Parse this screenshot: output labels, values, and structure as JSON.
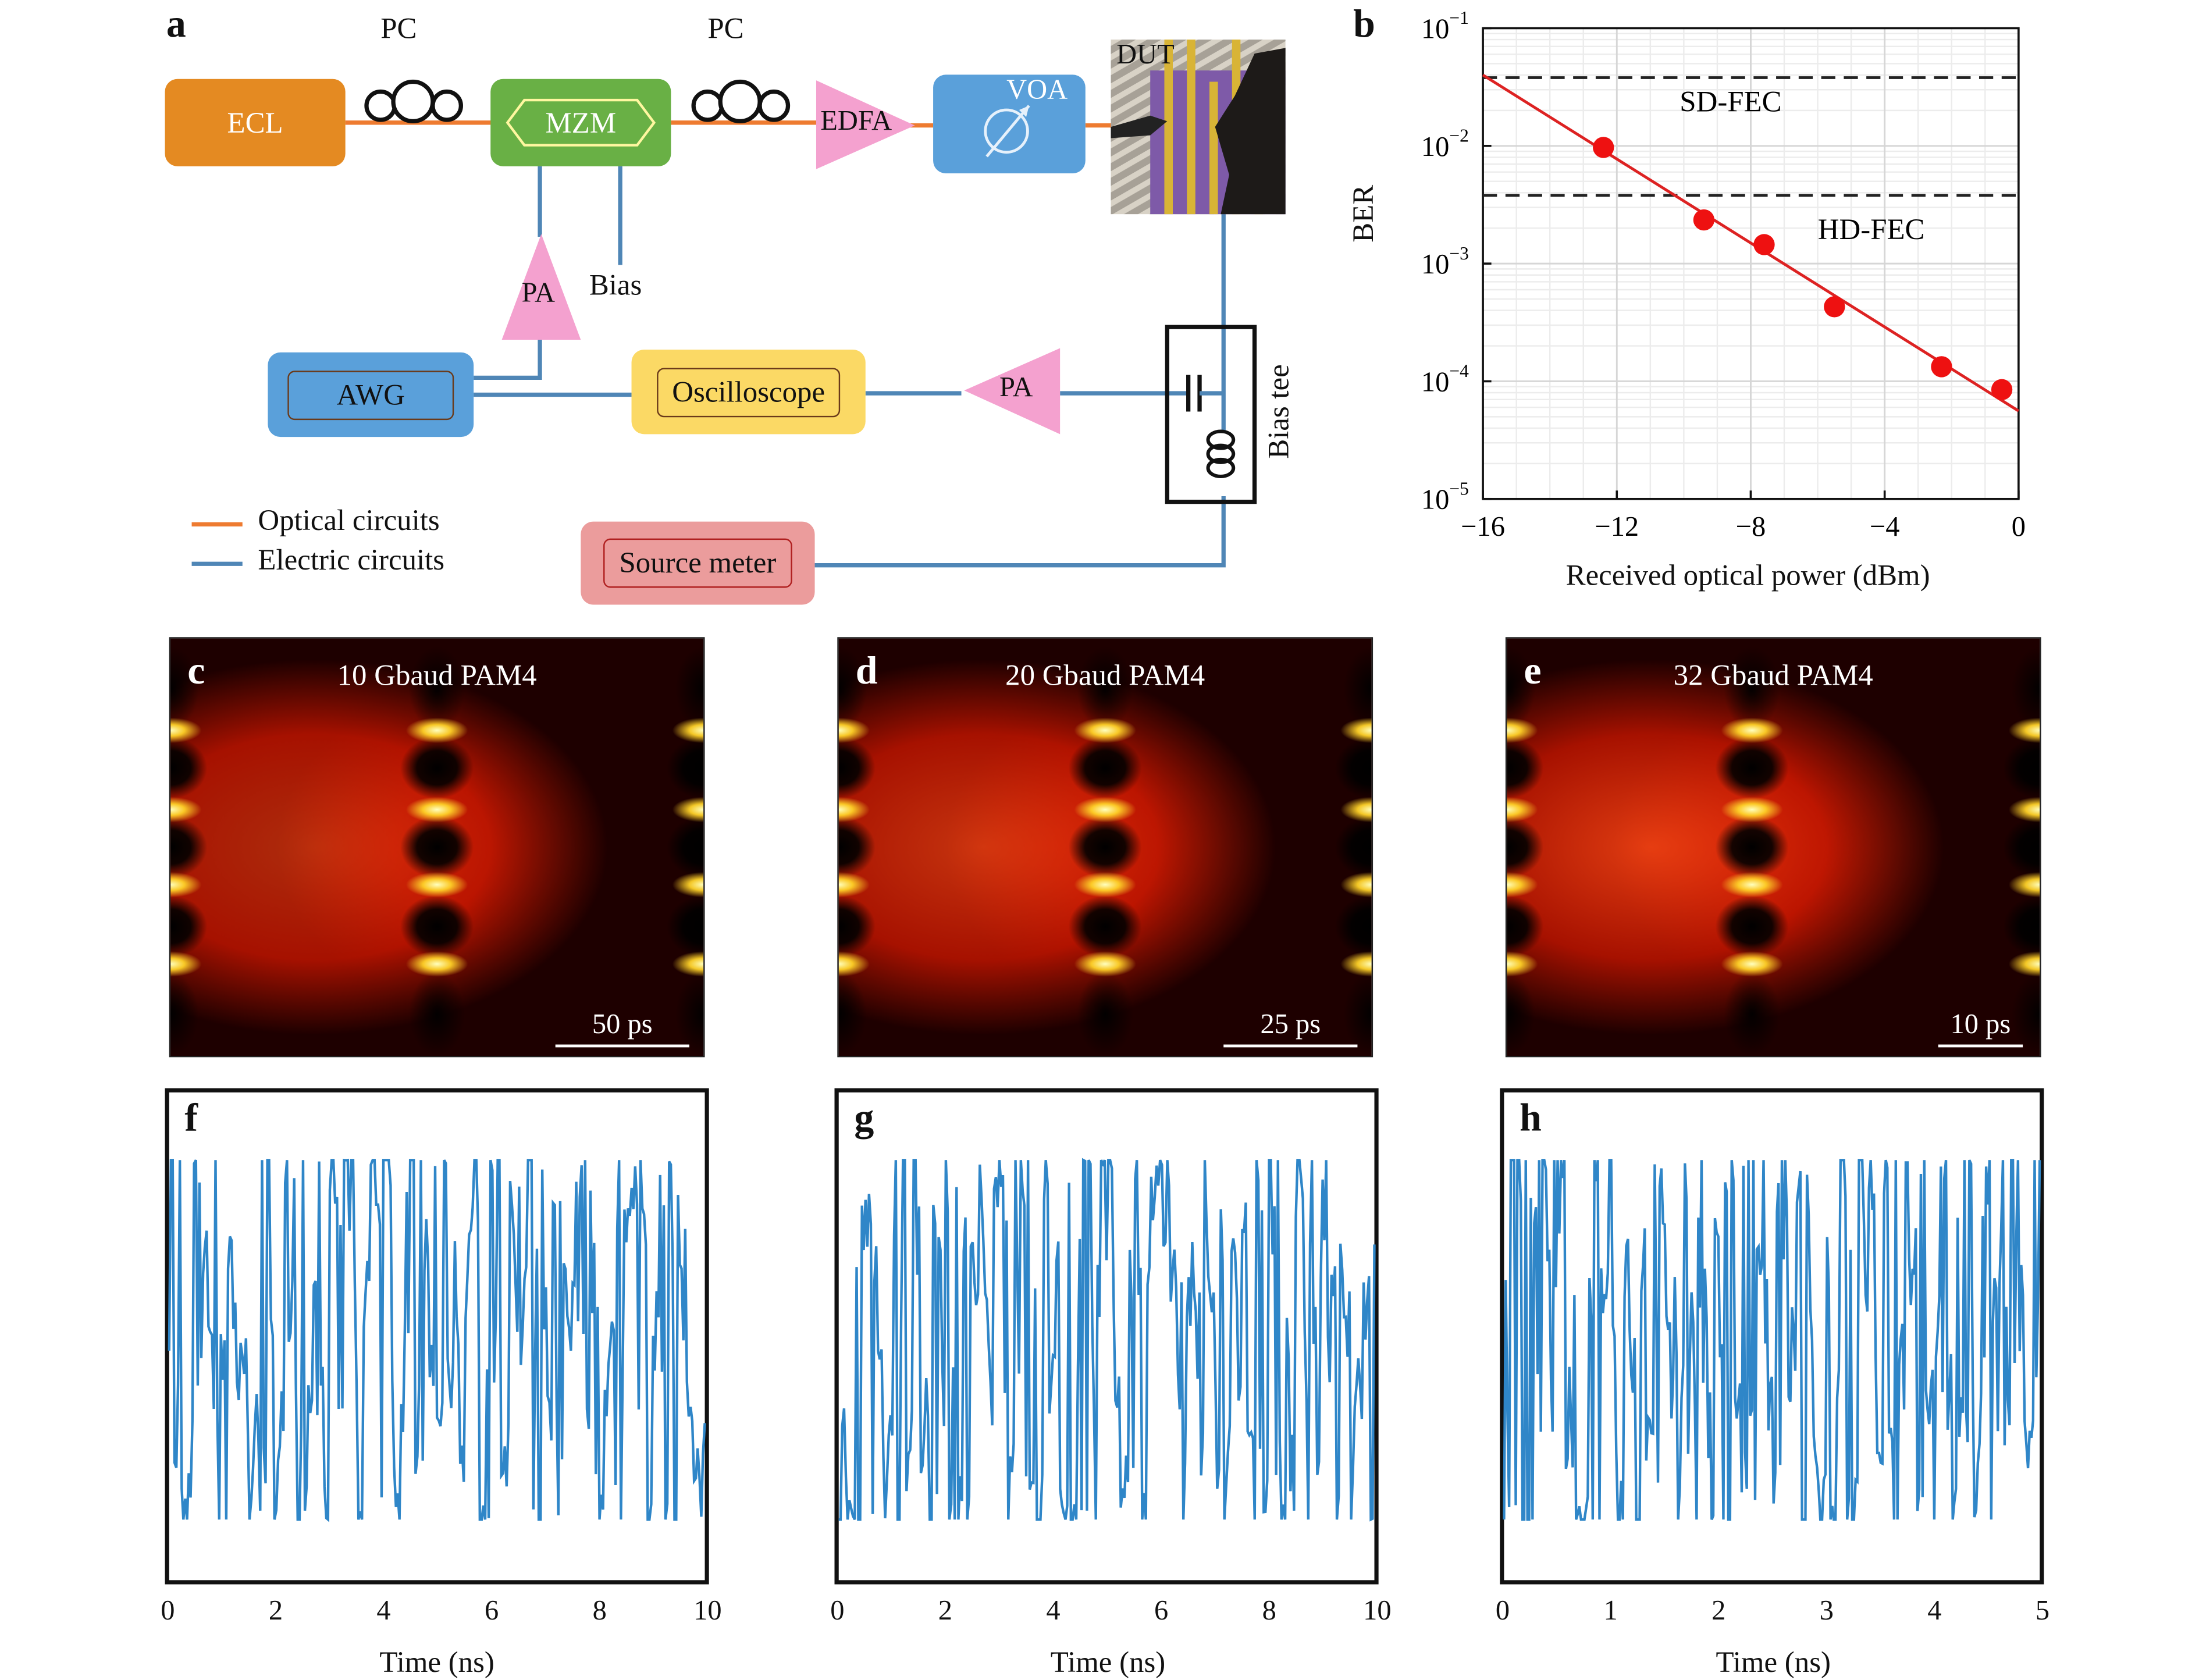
{
  "panel_a": {
    "letter": "a",
    "pc1": "PC",
    "pc2": "PC",
    "ecl": "ECL",
    "mzm": "MZM",
    "edfa": "EDFA",
    "voa": "VOA",
    "dut": "DUT",
    "pa1": "PA",
    "bias": "Bias",
    "awg": "AWG",
    "oscilloscope": "Oscilloscope",
    "pa2": "PA",
    "bias_tee": "Bias tee",
    "source_meter": "Source meter",
    "legend_optical": "Optical circuits",
    "legend_electric": "Electric circuits",
    "colors": {
      "optical": "#ee7b30",
      "electric": "#4f86b6",
      "ecl": "#e48a22",
      "mzm": "#69b045",
      "pa": "#f4a1cf",
      "voa": "#5aa0da",
      "osc": "#fbd965",
      "source": "#eb9c9c"
    }
  },
  "panel_b": {
    "letter": "b",
    "chart_data": {
      "type": "scatter",
      "ylabel": "BER",
      "xlabel": "Received optical power (dBm)",
      "xlim": [
        -16,
        0
      ],
      "y_log": true,
      "ylim": [
        1e-05,
        0.1
      ],
      "x_ticks": [
        "−16",
        "−12",
        "−8",
        "−4",
        "0"
      ],
      "y_ticks": [
        {
          "base": "10",
          "exp": "−1"
        },
        {
          "base": "10",
          "exp": "−2"
        },
        {
          "base": "10",
          "exp": "−3"
        },
        {
          "base": "10",
          "exp": "−4"
        },
        {
          "base": "10",
          "exp": "−5"
        }
      ],
      "points": [
        {
          "x": -12.4,
          "y": 0.0097
        },
        {
          "x": -9.4,
          "y": 0.00235
        },
        {
          "x": -7.6,
          "y": 0.00145
        },
        {
          "x": -5.5,
          "y": 0.00043
        },
        {
          "x": -2.3,
          "y": 0.000133
        },
        {
          "x": -0.5,
          "y": 8.5e-05
        }
      ],
      "fit_line": {
        "x": [
          -16,
          0
        ],
        "y": [
          0.04,
          5.6e-05
        ]
      },
      "thresholds": [
        {
          "name": "SD-FEC",
          "y": 0.038
        },
        {
          "name": "HD-FEC",
          "y": 0.0038
        }
      ],
      "colors": {
        "marker": "#ee1111",
        "line": "#dd2222",
        "threshold": "#222222"
      }
    }
  },
  "eyes": [
    {
      "letter": "c",
      "title": "10 Gbaud PAM4",
      "scale": "50 ps"
    },
    {
      "letter": "d",
      "title": "20 Gbaud PAM4",
      "scale": "25 ps"
    },
    {
      "letter": "e",
      "title": "32 Gbaud PAM4",
      "scale": "10 ps"
    }
  ],
  "waveforms": [
    {
      "letter": "f",
      "xlabel": "Time (ns)",
      "x_ticks": [
        "0",
        "2",
        "4",
        "6",
        "8",
        "10"
      ],
      "xlim": [
        0,
        10
      ]
    },
    {
      "letter": "g",
      "xlabel": "Time (ns)",
      "x_ticks": [
        "0",
        "2",
        "4",
        "6",
        "8",
        "10"
      ],
      "xlim": [
        0,
        10
      ]
    },
    {
      "letter": "h",
      "xlabel": "Time (ns)",
      "x_ticks": [
        "0",
        "1",
        "2",
        "3",
        "4",
        "5"
      ],
      "xlim": [
        0,
        5
      ]
    }
  ],
  "waveform_color": "#2f86c8"
}
